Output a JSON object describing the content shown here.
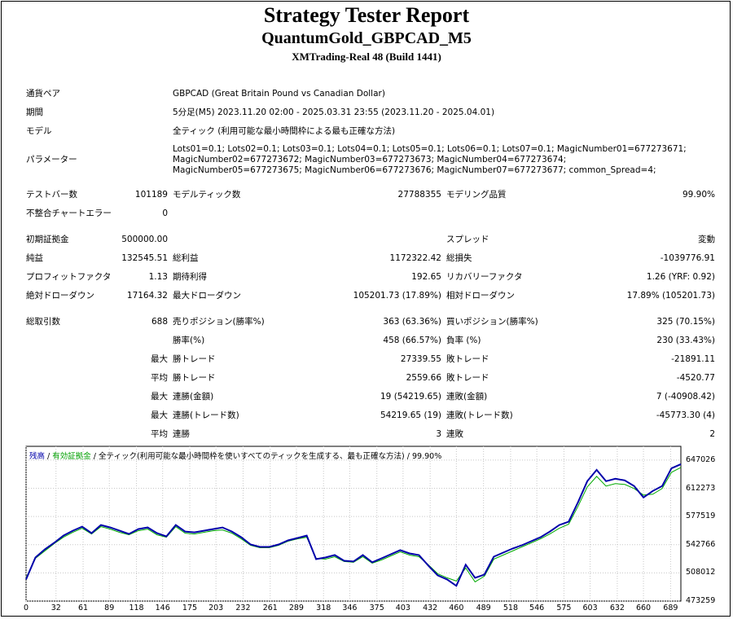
{
  "header": {
    "title": "Strategy Tester Report",
    "subtitle": "QuantumGold_GBPCAD_M5",
    "build": "XMTrading-Real 48 (Build 1441)"
  },
  "info": {
    "pair_label": "通貨ペア",
    "pair_value": "GBPCAD (Great Britain Pound vs Canadian Dollar)",
    "period_label": "期間",
    "period_value": "5分足(M5) 2023.11.20 02:00 - 2025.03.31 23:55 (2023.11.20 - 2025.04.01)",
    "model_label": "モデル",
    "model_value": "全ティック (利用可能な最小時間枠による最も正確な方法)",
    "params_label": "パラメーター",
    "params_value": "Lots01=0.1; Lots02=0.1; Lots03=0.1; Lots04=0.1; Lots05=0.1; Lots06=0.1; Lots07=0.1; MagicNumber01=677273671; MagicNumber02=677273672; MagicNumber03=677273673; MagicNumber04=677273674; MagicNumber05=677273675; MagicNumber06=677273676; MagicNumber07=677273677; common_Spread=4;"
  },
  "stats": {
    "bars_label": "テストバー数",
    "bars_value": "101189",
    "ticks_label": "モデルティック数",
    "ticks_value": "27788355",
    "quality_label": "モデリング品質",
    "quality_value": "99.90%",
    "mismatch_label": "不整合チャートエラー",
    "mismatch_value": "0",
    "deposit_label": "初期証拠金",
    "deposit_value": "500000.00",
    "spread_label": "スプレッド",
    "spread_value": "変動",
    "net_label": "純益",
    "net_value": "132545.51",
    "gross_profit_label": "総利益",
    "gross_profit_value": "1172322.42",
    "gross_loss_label": "総損失",
    "gross_loss_value": "-1039776.91",
    "pf_label": "プロフィットファクタ",
    "pf_value": "1.13",
    "expected_label": "期待利得",
    "expected_value": "192.65",
    "recovery_label": "リカバリーファクタ",
    "recovery_value": "1.26 (YRF: 0.92)",
    "abs_dd_label": "絶対ドローダウン",
    "abs_dd_value": "17164.32",
    "max_dd_label": "最大ドローダウン",
    "max_dd_value": "105201.73 (17.89%)",
    "rel_dd_label": "相対ドローダウン",
    "rel_dd_value": "17.89% (105201.73)",
    "trades_label": "総取引数",
    "trades_value": "688",
    "short_label": "売りポジション(勝率%)",
    "short_value": "363 (63.36%)",
    "long_label": "買いポジション(勝率%)",
    "long_value": "325 (70.15%)",
    "win_rate_label": "勝率(%)",
    "win_rate_value": "458 (66.57%)",
    "loss_rate_label": "負率 (%)",
    "loss_rate_value": "230 (33.43%)",
    "max_label": "最大",
    "avg_label": "平均",
    "largest_win_label": "勝トレード",
    "largest_win_value": "27339.55",
    "largest_loss_label": "敗トレード",
    "largest_loss_value": "-21891.11",
    "avg_win_label": "勝トレード",
    "avg_win_value": "2559.66",
    "avg_loss_label": "敗トレード",
    "avg_loss_value": "-4520.77",
    "max_consec_win_amt_label": "連勝(金額)",
    "max_consec_win_amt_value": "19 (54219.65)",
    "max_consec_loss_amt_label": "連敗(金額)",
    "max_consec_loss_amt_value": "7 (-40908.42)",
    "max_consec_win_cnt_label": "連勝(トレード数)",
    "max_consec_win_cnt_value": "54219.65 (19)",
    "max_consec_loss_cnt_label": "連敗(トレード数)",
    "max_consec_loss_cnt_value": "-45773.30 (4)",
    "avg_consec_win_label": "連勝",
    "avg_consec_win_value": "3",
    "avg_consec_loss_label": "連敗",
    "avg_consec_loss_value": "2"
  },
  "legend": {
    "balance": "残高",
    "sep1": " / ",
    "equity": "有効証拠金",
    "sep2": " / ",
    "model": "全ティック(利用可能な最小時間枠を使いすべてのティックを生成する、最も正確な方法)",
    "sep3": " / ",
    "quality": "99.90%"
  },
  "colors": {
    "balance": "#0000aa",
    "equity": "#00aa00",
    "grid": "#c8c8c8"
  },
  "chart_data": {
    "type": "line",
    "ylim": [
      473259,
      664000
    ],
    "xlim": [
      0,
      700
    ],
    "y_ticks": [
      "647026",
      "612273",
      "577519",
      "542766",
      "508012",
      "473259"
    ],
    "y_tick_values": [
      647026,
      612273,
      577519,
      542766,
      508012,
      473259
    ],
    "x_ticks": [
      "0",
      "32",
      "61",
      "89",
      "118",
      "146",
      "175",
      "203",
      "232",
      "261",
      "289",
      "318",
      "346",
      "375",
      "403",
      "432",
      "460",
      "489",
      "518",
      "546",
      "575",
      "603",
      "632",
      "660",
      "689"
    ],
    "x_tick_values": [
      0,
      32,
      61,
      89,
      118,
      146,
      175,
      203,
      232,
      261,
      289,
      318,
      346,
      375,
      403,
      432,
      460,
      489,
      518,
      546,
      575,
      603,
      632,
      660,
      689
    ],
    "series": [
      {
        "name": "残高",
        "x": [
          0,
          10,
          20,
          30,
          40,
          50,
          60,
          70,
          80,
          90,
          100,
          110,
          120,
          130,
          140,
          150,
          160,
          170,
          180,
          190,
          200,
          210,
          220,
          230,
          240,
          250,
          260,
          270,
          280,
          290,
          300,
          310,
          320,
          330,
          340,
          350,
          360,
          370,
          380,
          390,
          400,
          410,
          420,
          430,
          440,
          450,
          460,
          470,
          480,
          490,
          500,
          510,
          520,
          530,
          540,
          550,
          560,
          570,
          580,
          590,
          600,
          610,
          620,
          630,
          640,
          650,
          660,
          670,
          680,
          690,
          700
        ],
        "values": [
          500000,
          527000,
          537000,
          545000,
          554000,
          560000,
          565000,
          557000,
          567000,
          564000,
          560000,
          556000,
          562000,
          564000,
          557000,
          553000,
          567000,
          559000,
          558000,
          560000,
          562000,
          564000,
          559000,
          552000,
          543000,
          540000,
          540000,
          543000,
          548000,
          551000,
          554000,
          525000,
          527000,
          530000,
          523000,
          522000,
          530000,
          521000,
          526000,
          531000,
          536000,
          532000,
          530000,
          517000,
          505000,
          500000,
          492000,
          518000,
          502000,
          506000,
          528000,
          533000,
          538000,
          542000,
          547000,
          552000,
          559000,
          567000,
          571000,
          595000,
          621000,
          635000,
          621000,
          624000,
          622000,
          615000,
          601000,
          609000,
          615000,
          637000,
          642000
        ]
      },
      {
        "name": "有効証拠金",
        "x": [
          0,
          10,
          20,
          30,
          40,
          50,
          60,
          70,
          80,
          90,
          100,
          110,
          120,
          130,
          140,
          150,
          160,
          170,
          180,
          190,
          200,
          210,
          220,
          230,
          240,
          250,
          260,
          270,
          280,
          290,
          300,
          310,
          320,
          330,
          340,
          350,
          360,
          370,
          380,
          390,
          400,
          410,
          420,
          430,
          440,
          450,
          460,
          470,
          480,
          490,
          500,
          510,
          520,
          530,
          540,
          550,
          560,
          570,
          580,
          590,
          600,
          610,
          620,
          630,
          640,
          650,
          660,
          670,
          680,
          690,
          700
        ],
        "values": [
          502000,
          526000,
          535000,
          544000,
          552000,
          558000,
          563000,
          556000,
          565000,
          562000,
          558000,
          555000,
          560000,
          562000,
          555000,
          552000,
          565000,
          557000,
          556000,
          558000,
          560000,
          561000,
          557000,
          550000,
          542000,
          539000,
          539000,
          542000,
          547000,
          550000,
          552000,
          526000,
          525000,
          528000,
          522000,
          521000,
          528000,
          520000,
          524000,
          529000,
          534000,
          530000,
          528000,
          518000,
          507000,
          502000,
          498000,
          514000,
          497000,
          504000,
          525000,
          530000,
          535000,
          540000,
          545000,
          550000,
          556000,
          563000,
          568000,
          590000,
          614000,
          627000,
          615000,
          618000,
          617000,
          612000,
          604000,
          605000,
          612000,
          632000,
          638000
        ]
      }
    ]
  }
}
